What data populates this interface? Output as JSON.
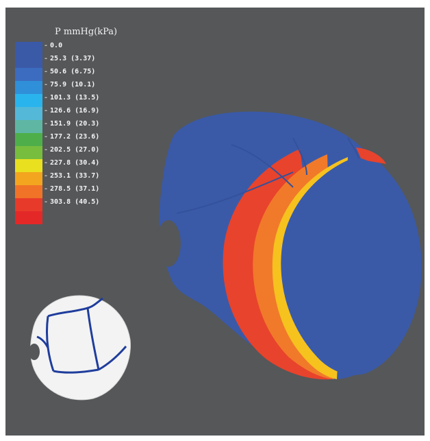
{
  "legend": {
    "title": "P mmHg(kPa)",
    "entries": [
      {
        "label": "0.0",
        "color": "#3a5aa8"
      },
      {
        "label": "25.3 (3.37)",
        "color": "#3a5aa8"
      },
      {
        "label": "50.6 (6.75)",
        "color": "#3b6cc0"
      },
      {
        "label": "75.9 (10.1)",
        "color": "#2f8fd8"
      },
      {
        "label": "101.3 (13.5)",
        "color": "#2ab4ee"
      },
      {
        "label": "126.6 (16.9)",
        "color": "#54b8d8"
      },
      {
        "label": "151.9 (20.3)",
        "color": "#5fb7a3"
      },
      {
        "label": "177.2 (23.6)",
        "color": "#4eaf4a"
      },
      {
        "label": "202.5 (27.0)",
        "color": "#77bd3e"
      },
      {
        "label": "227.8 (30.4)",
        "color": "#e9e020"
      },
      {
        "label": "253.1 (33.7)",
        "color": "#f3a51f"
      },
      {
        "label": "278.5 (37.1)",
        "color": "#f07328"
      },
      {
        "label": "303.8 (40.5)",
        "color": "#e83a2a"
      },
      {
        "label": "",
        "color": "#e42828"
      }
    ]
  },
  "colors": {
    "background": "#555759",
    "head_base": "#3a5aa8",
    "band_red": "#e8432c",
    "band_orange": "#f07a2a",
    "band_yellow": "#f6c21e",
    "skull_white": "#f3f3f3",
    "suture_blue": "#1f3d9c"
  }
}
